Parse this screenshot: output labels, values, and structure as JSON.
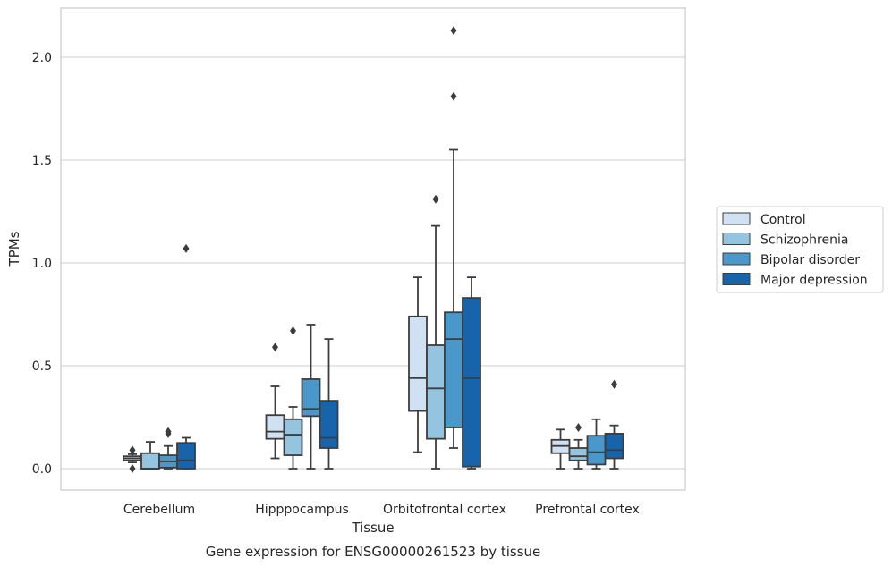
{
  "chart_data": {
    "type": "box",
    "caption": "Gene expression for ENSG00000261523 by tissue",
    "xlabel": "Tissue",
    "ylabel": "TPMs",
    "ylim": [
      -0.1,
      2.25
    ],
    "yticks": [
      0.0,
      0.5,
      1.0,
      1.5,
      2.0
    ],
    "ytick_labels": [
      "0.0",
      "0.5",
      "1.0",
      "1.5",
      "2.0"
    ],
    "grid": "horizontal",
    "legend_position": "right",
    "categories": [
      "Cerebellum",
      "Hipppocampus",
      "Orbitofrontal cortex",
      "Prefrontal cortex"
    ],
    "series": [
      {
        "name": "Control",
        "color": "#d0e1f2",
        "boxes": [
          {
            "whislo": 0.03,
            "q1": 0.04,
            "med": 0.05,
            "q3": 0.06,
            "whishi": 0.07,
            "fliers": [
              0.0,
              0.09
            ]
          },
          {
            "whislo": 0.05,
            "q1": 0.145,
            "med": 0.18,
            "q3": 0.26,
            "whishi": 0.4,
            "fliers": [
              0.59
            ]
          },
          {
            "whislo": 0.08,
            "q1": 0.28,
            "med": 0.44,
            "q3": 0.74,
            "whishi": 0.93,
            "fliers": []
          },
          {
            "whislo": 0.0,
            "q1": 0.075,
            "med": 0.11,
            "q3": 0.14,
            "whishi": 0.19,
            "fliers": []
          }
        ]
      },
      {
        "name": "Schizophrenia",
        "color": "#94c4df",
        "boxes": [
          {
            "whislo": 0.0,
            "q1": 0.0,
            "med": 0.0,
            "q3": 0.075,
            "whishi": 0.13,
            "fliers": []
          },
          {
            "whislo": 0.0,
            "q1": 0.065,
            "med": 0.165,
            "q3": 0.24,
            "whishi": 0.3,
            "fliers": [
              0.67
            ]
          },
          {
            "whislo": 0.0,
            "q1": 0.145,
            "med": 0.39,
            "q3": 0.6,
            "whishi": 1.18,
            "fliers": [
              1.31
            ]
          },
          {
            "whislo": 0.0,
            "q1": 0.04,
            "med": 0.06,
            "q3": 0.1,
            "whishi": 0.14,
            "fliers": [
              0.2
            ]
          }
        ]
      },
      {
        "name": "Bipolar disorder",
        "color": "#4a98c9",
        "boxes": [
          {
            "whislo": 0.0,
            "q1": 0.005,
            "med": 0.035,
            "q3": 0.065,
            "whishi": 0.11,
            "fliers": [
              0.17,
              0.18
            ]
          },
          {
            "whislo": 0.0,
            "q1": 0.255,
            "med": 0.29,
            "q3": 0.435,
            "whishi": 0.7,
            "fliers": []
          },
          {
            "whislo": 0.1,
            "q1": 0.2,
            "med": 0.63,
            "q3": 0.76,
            "whishi": 1.55,
            "fliers": [
              1.81,
              2.13
            ]
          },
          {
            "whislo": 0.0,
            "q1": 0.02,
            "med": 0.08,
            "q3": 0.16,
            "whishi": 0.24,
            "fliers": []
          }
        ]
      },
      {
        "name": "Major depression",
        "color": "#1764ab",
        "boxes": [
          {
            "whislo": 0.0,
            "q1": 0.0,
            "med": 0.04,
            "q3": 0.125,
            "whishi": 0.15,
            "fliers": [
              1.07
            ]
          },
          {
            "whislo": 0.0,
            "q1": 0.1,
            "med": 0.15,
            "q3": 0.33,
            "whishi": 0.63,
            "fliers": []
          },
          {
            "whislo": 0.0,
            "q1": 0.01,
            "med": 0.44,
            "q3": 0.83,
            "whishi": 0.93,
            "fliers": []
          },
          {
            "whislo": 0.0,
            "q1": 0.05,
            "med": 0.09,
            "q3": 0.17,
            "whishi": 0.21,
            "fliers": [
              0.41
            ]
          }
        ]
      }
    ]
  }
}
